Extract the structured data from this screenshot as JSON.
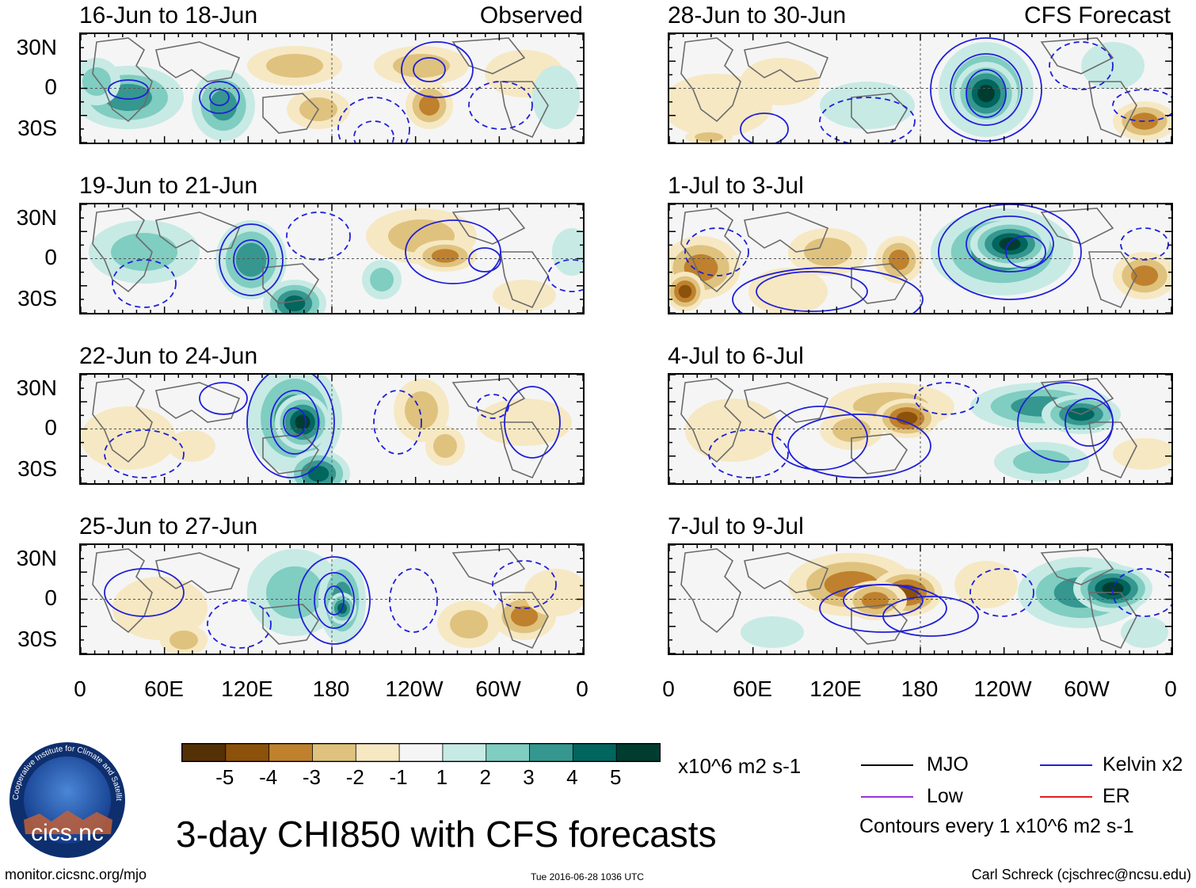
{
  "panels": [
    {
      "title": "16-Jun to 18-Jun",
      "label": "Observed",
      "column": "left",
      "row": 0
    },
    {
      "title": "19-Jun to 21-Jun",
      "label": "",
      "column": "left",
      "row": 1
    },
    {
      "title": "22-Jun to 24-Jun",
      "label": "",
      "column": "left",
      "row": 2
    },
    {
      "title": "25-Jun to 27-Jun",
      "label": "",
      "column": "left",
      "row": 3
    },
    {
      "title": "28-Jun to 30-Jun",
      "label": "CFS Forecast",
      "column": "right",
      "row": 0
    },
    {
      "title": "1-Jul to 3-Jul",
      "label": "",
      "column": "right",
      "row": 1
    },
    {
      "title": "4-Jul to 6-Jul",
      "label": "",
      "column": "right",
      "row": 2
    },
    {
      "title": "7-Jul to 9-Jul",
      "label": "",
      "column": "right",
      "row": 3
    }
  ],
  "y_axis_labels": [
    "30N",
    "0",
    "30S"
  ],
  "x_axis_labels": [
    "0",
    "60E",
    "120E",
    "180",
    "120W",
    "60W",
    "0"
  ],
  "colorbar": {
    "labels": [
      "-5",
      "-4",
      "-3",
      "-2",
      "-1",
      "1",
      "2",
      "3",
      "4",
      "5"
    ],
    "colors": [
      "#543005",
      "#8c510a",
      "#bf812d",
      "#dfc27d",
      "#f6e8c3",
      "#f5f5f5",
      "#c7eae5",
      "#80cdc1",
      "#35978f",
      "#01665e",
      "#003c30"
    ],
    "units": "x10^6 m2 s-1"
  },
  "legend": {
    "items": [
      {
        "label": "MJO",
        "color": "#000000"
      },
      {
        "label": "Kelvin x2",
        "color": "#1f1fd9"
      },
      {
        "label": "Low",
        "color": "#9b30e0"
      },
      {
        "label": "ER",
        "color": "#e0201f"
      }
    ],
    "note": "Contours every 1 x10^6 m2 s-1"
  },
  "title": "3-day CHI850 with CFS forecasts",
  "logo": {
    "text": "cics.nc",
    "ring_text": "Cooperative Institute for Climate and Satellites"
  },
  "footer": {
    "left": "monitor.cicsnc.org/mjo",
    "center": "Tue 2016-06-28 1036 UTC",
    "right": "Carl Schreck (cjschrec@ncsu.edu)"
  }
}
